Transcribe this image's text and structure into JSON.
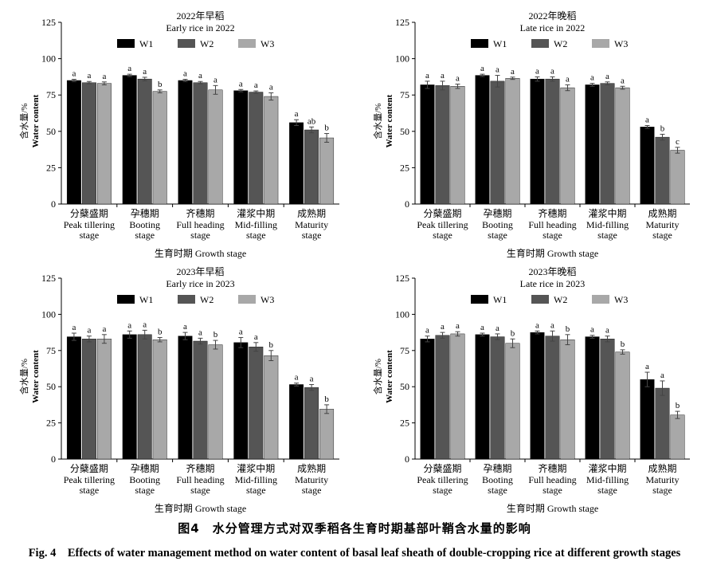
{
  "figure": {
    "caption_zh": "图4　水分管理方式对双季稻各生育时期基部叶鞘含水量的影响",
    "caption_en": "Fig. 4　Effects of water management method on water content of basal leaf sheath of double-cropping rice at different growth stages"
  },
  "colors": {
    "W1": "#000000",
    "W2": "#555555",
    "W3": "#a8a8a8"
  },
  "chart_data": [
    {
      "type": "bar",
      "title": "2022年早稻",
      "subtitle": "Early rice in 2022",
      "ylabel_zh": "含水量/%",
      "ylabel_en": "Water content",
      "xlabel": "生育时期 Growth stage",
      "ylim": [
        0,
        125
      ],
      "yticks": [
        0,
        25,
        50,
        75,
        100,
        125
      ],
      "legend_position": "top",
      "grid": false,
      "categories": [
        {
          "zh": "分蘖盛期",
          "en1": "Peak tillering",
          "en2": "stage"
        },
        {
          "zh": "孕穗期",
          "en1": "Booting",
          "en2": "stage"
        },
        {
          "zh": "齐穗期",
          "en1": "Full heading",
          "en2": "stage"
        },
        {
          "zh": "灌浆中期",
          "en1": "Mid-filling",
          "en2": "stage"
        },
        {
          "zh": "成熟期",
          "en1": "Maturity",
          "en2": "stage"
        }
      ],
      "series": [
        {
          "name": "W1",
          "values": [
            85.0,
            88.5,
            85.0,
            78.0,
            56.0
          ],
          "errors": [
            0.8,
            0.8,
            0.8,
            0.8,
            2.0
          ],
          "letters": [
            "a",
            "a",
            "a",
            "a",
            "a"
          ]
        },
        {
          "name": "W2",
          "values": [
            83.5,
            86.0,
            83.5,
            77.0,
            51.0
          ],
          "errors": [
            0.8,
            1.2,
            0.8,
            0.8,
            2.0
          ],
          "letters": [
            "a",
            "a",
            "a",
            "a",
            "ab"
          ]
        },
        {
          "name": "W3",
          "values": [
            83.0,
            77.5,
            78.5,
            74.0,
            45.5
          ],
          "errors": [
            1.0,
            1.0,
            3.0,
            2.5,
            3.0
          ],
          "letters": [
            "a",
            "b",
            "a",
            "a",
            "b"
          ]
        }
      ]
    },
    {
      "type": "bar",
      "title": "2022年晚稻",
      "subtitle": "Late rice in 2022",
      "ylabel_zh": "含水量/%",
      "ylabel_en": "Water content",
      "xlabel": "生育时期 Growth stage",
      "ylim": [
        0,
        125
      ],
      "yticks": [
        0,
        25,
        50,
        75,
        100,
        125
      ],
      "legend_position": "top",
      "grid": false,
      "categories": [
        {
          "zh": "分蘖盛期",
          "en1": "Peak tillering",
          "en2": "stage"
        },
        {
          "zh": "孕穗期",
          "en1": "Booting",
          "en2": "stage"
        },
        {
          "zh": "齐穗期",
          "en1": "Full heading",
          "en2": "stage"
        },
        {
          "zh": "灌浆中期",
          "en1": "Mid-filling",
          "en2": "stage"
        },
        {
          "zh": "成熟期",
          "en1": "Maturity",
          "en2": "stage"
        }
      ],
      "series": [
        {
          "name": "W1",
          "values": [
            82.0,
            88.5,
            86.0,
            82.0,
            53.0
          ],
          "errors": [
            2.5,
            0.8,
            1.5,
            1.0,
            1.0
          ],
          "letters": [
            "a",
            "a",
            "a",
            "a",
            "a"
          ]
        },
        {
          "name": "W2",
          "values": [
            81.5,
            84.5,
            86.0,
            83.0,
            46.0
          ],
          "errors": [
            3.0,
            4.0,
            1.5,
            1.0,
            2.0
          ],
          "letters": [
            "a",
            "a",
            "a",
            "a",
            "b"
          ]
        },
        {
          "name": "W3",
          "values": [
            81.0,
            86.5,
            80.0,
            80.0,
            37.0
          ],
          "errors": [
            1.5,
            0.8,
            2.0,
            1.0,
            2.0
          ],
          "letters": [
            "a",
            "a",
            "a",
            "a",
            "c"
          ]
        }
      ]
    },
    {
      "type": "bar",
      "title": "2023年早稻",
      "subtitle": "Early rice in 2023",
      "ylabel_zh": "含水量/%",
      "ylabel_en": "Water content",
      "xlabel": "生育时期 Growth stage",
      "ylim": [
        0,
        125
      ],
      "yticks": [
        0,
        25,
        50,
        75,
        100,
        125
      ],
      "legend_position": "top",
      "grid": false,
      "categories": [
        {
          "zh": "分蘖盛期",
          "en1": "Peak tillering",
          "en2": "stage"
        },
        {
          "zh": "孕穗期",
          "en1": "Booting",
          "en2": "stage"
        },
        {
          "zh": "齐穗期",
          "en1": "Full heading",
          "en2": "stage"
        },
        {
          "zh": "灌浆中期",
          "en1": "Mid-filling",
          "en2": "stage"
        },
        {
          "zh": "成熟期",
          "en1": "Maturity",
          "en2": "stage"
        }
      ],
      "series": [
        {
          "name": "W1",
          "values": [
            84.5,
            86.0,
            85.0,
            80.5,
            51.5
          ],
          "errors": [
            2.5,
            2.5,
            2.5,
            3.5,
            1.0
          ],
          "letters": [
            "a",
            "a",
            "a",
            "a",
            "a"
          ]
        },
        {
          "name": "W2",
          "values": [
            83.0,
            86.0,
            81.5,
            77.5,
            49.5
          ],
          "errors": [
            2.0,
            3.0,
            2.0,
            3.0,
            2.0
          ],
          "letters": [
            "a",
            "a",
            "a",
            "a",
            "a"
          ]
        },
        {
          "name": "W3",
          "values": [
            83.0,
            82.5,
            79.0,
            71.5,
            34.5
          ],
          "errors": [
            3.0,
            1.5,
            3.0,
            3.5,
            3.0
          ],
          "letters": [
            "a",
            "b",
            "b",
            "b",
            "b"
          ]
        }
      ]
    },
    {
      "type": "bar",
      "title": "2023年晚稻",
      "subtitle": "Late rice in 2023",
      "ylabel_zh": "含水量/%",
      "ylabel_en": "Water content",
      "xlabel": "生育时期 Growth stage",
      "ylim": [
        0,
        125
      ],
      "yticks": [
        0,
        25,
        50,
        75,
        100,
        125
      ],
      "legend_position": "top",
      "grid": false,
      "categories": [
        {
          "zh": "分蘖盛期",
          "en1": "Peak tillering",
          "en2": "stage"
        },
        {
          "zh": "孕穗期",
          "en1": "Booting",
          "en2": "stage"
        },
        {
          "zh": "齐穗期",
          "en1": "Full heading",
          "en2": "stage"
        },
        {
          "zh": "灌浆中期",
          "en1": "Mid-filling",
          "en2": "stage"
        },
        {
          "zh": "成熟期",
          "en1": "Maturity",
          "en2": "stage"
        }
      ],
      "series": [
        {
          "name": "W1",
          "values": [
            83.0,
            86.0,
            87.5,
            84.5,
            55.0
          ],
          "errors": [
            2.0,
            1.0,
            1.0,
            1.0,
            5.0
          ],
          "letters": [
            "a",
            "a",
            "a",
            "a",
            "a"
          ]
        },
        {
          "name": "W2",
          "values": [
            85.5,
            84.5,
            85.0,
            83.0,
            49.0
          ],
          "errors": [
            2.0,
            2.0,
            3.5,
            2.0,
            5.0
          ],
          "letters": [
            "a",
            "a",
            "a",
            "a",
            "a"
          ]
        },
        {
          "name": "W3",
          "values": [
            86.5,
            80.0,
            82.5,
            74.0,
            30.5
          ],
          "errors": [
            1.5,
            3.0,
            3.5,
            1.5,
            2.5
          ],
          "letters": [
            "a",
            "b",
            "b",
            "b",
            "b"
          ]
        }
      ]
    }
  ]
}
